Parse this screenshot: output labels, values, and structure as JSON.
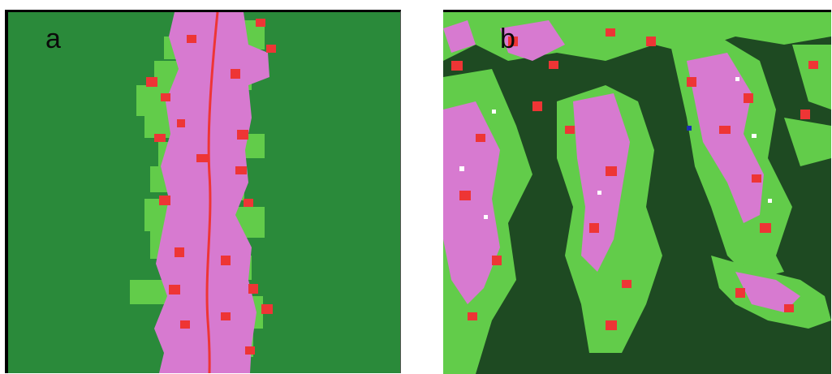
{
  "panels": {
    "a": {
      "label": "a"
    },
    "b": {
      "label": "b"
    }
  },
  "colors": {
    "forest_a": "#2a8a3a",
    "forest_b": "#1e4a22",
    "pasture": "#d77ad0",
    "regrowth": "#62cc4a",
    "cleared": "#ee3535",
    "road": "#ee3535",
    "white_spots": "#ffffff"
  }
}
